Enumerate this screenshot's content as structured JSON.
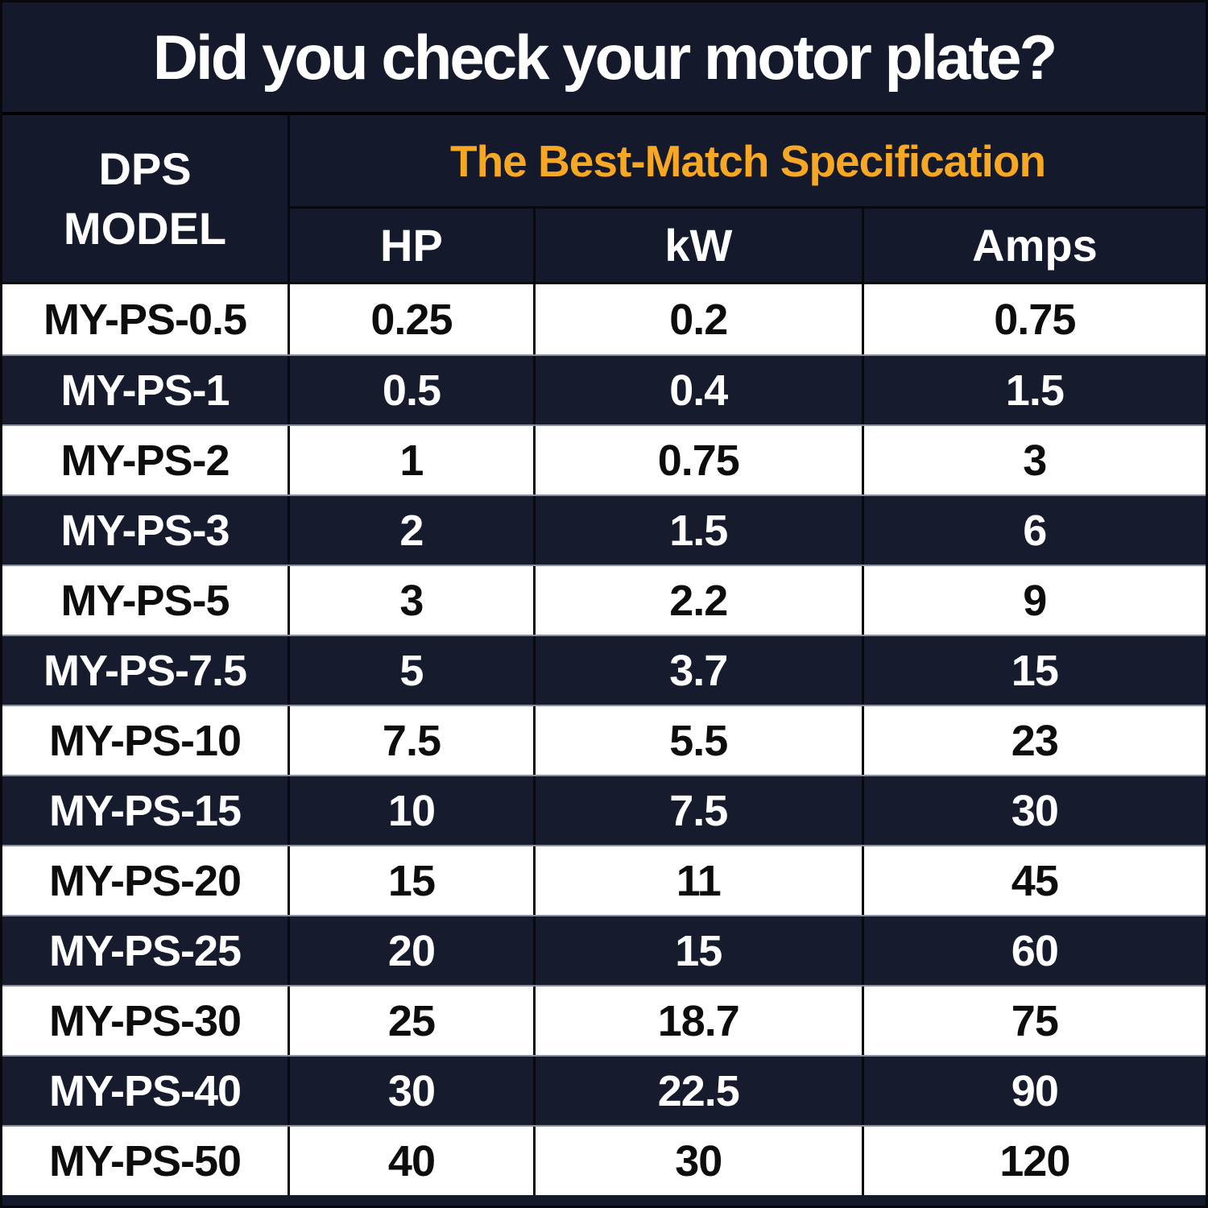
{
  "title": "Did you check your motor plate?",
  "table": {
    "row_header": "DPS\nMODEL",
    "spec_header": "The Best-Match Specification",
    "columns": {
      "hp": "HP",
      "kw": "kW",
      "amps": "Amps"
    },
    "rows": [
      {
        "model": "MY-PS-0.5",
        "hp": "0.25",
        "kw": "0.2",
        "amps": "0.75"
      },
      {
        "model": "MY-PS-1",
        "hp": "0.5",
        "kw": "0.4",
        "amps": "1.5"
      },
      {
        "model": "MY-PS-2",
        "hp": "1",
        "kw": "0.75",
        "amps": "3"
      },
      {
        "model": "MY-PS-3",
        "hp": "2",
        "kw": "1.5",
        "amps": "6"
      },
      {
        "model": "MY-PS-5",
        "hp": "3",
        "kw": "2.2",
        "amps": "9"
      },
      {
        "model": "MY-PS-7.5",
        "hp": "5",
        "kw": "3.7",
        "amps": "15"
      },
      {
        "model": "MY-PS-10",
        "hp": "7.5",
        "kw": "5.5",
        "amps": "23"
      },
      {
        "model": "MY-PS-15",
        "hp": "10",
        "kw": "7.5",
        "amps": "30"
      },
      {
        "model": "MY-PS-20",
        "hp": "15",
        "kw": "11",
        "amps": "45"
      },
      {
        "model": "MY-PS-25",
        "hp": "20",
        "kw": "15",
        "amps": "60"
      },
      {
        "model": "MY-PS-30",
        "hp": "25",
        "kw": "18.7",
        "amps": "75"
      },
      {
        "model": "MY-PS-40",
        "hp": "30",
        "kw": "22.5",
        "amps": "90"
      },
      {
        "model": "MY-PS-50",
        "hp": "40",
        "kw": "30",
        "amps": "120"
      }
    ]
  },
  "chart_data": {
    "type": "table",
    "title": "Did you check your motor plate?",
    "subtitle": "The Best-Match Specification",
    "columns": [
      "DPS MODEL",
      "HP",
      "kW",
      "Amps"
    ],
    "rows": [
      [
        "MY-PS-0.5",
        0.25,
        0.2,
        0.75
      ],
      [
        "MY-PS-1",
        0.5,
        0.4,
        1.5
      ],
      [
        "MY-PS-2",
        1,
        0.75,
        3
      ],
      [
        "MY-PS-3",
        2,
        1.5,
        6
      ],
      [
        "MY-PS-5",
        3,
        2.2,
        9
      ],
      [
        "MY-PS-7.5",
        5,
        3.7,
        15
      ],
      [
        "MY-PS-10",
        7.5,
        5.5,
        23
      ],
      [
        "MY-PS-15",
        10,
        7.5,
        30
      ],
      [
        "MY-PS-20",
        15,
        11,
        45
      ],
      [
        "MY-PS-25",
        20,
        15,
        60
      ],
      [
        "MY-PS-30",
        25,
        18.7,
        75
      ],
      [
        "MY-PS-40",
        30,
        22.5,
        90
      ],
      [
        "MY-PS-50",
        40,
        30,
        120
      ]
    ],
    "layout_hints": {
      "alternating_row_colors": true,
      "grid": true
    }
  },
  "colors": {
    "background_navy": "#141A2B",
    "dark_row_navy": "#161C2D",
    "accent_orange": "#F6A825",
    "light_row": "#FFFFFF",
    "row_separator_gray": "#8A919E",
    "grid_line_black": "#07090F"
  }
}
